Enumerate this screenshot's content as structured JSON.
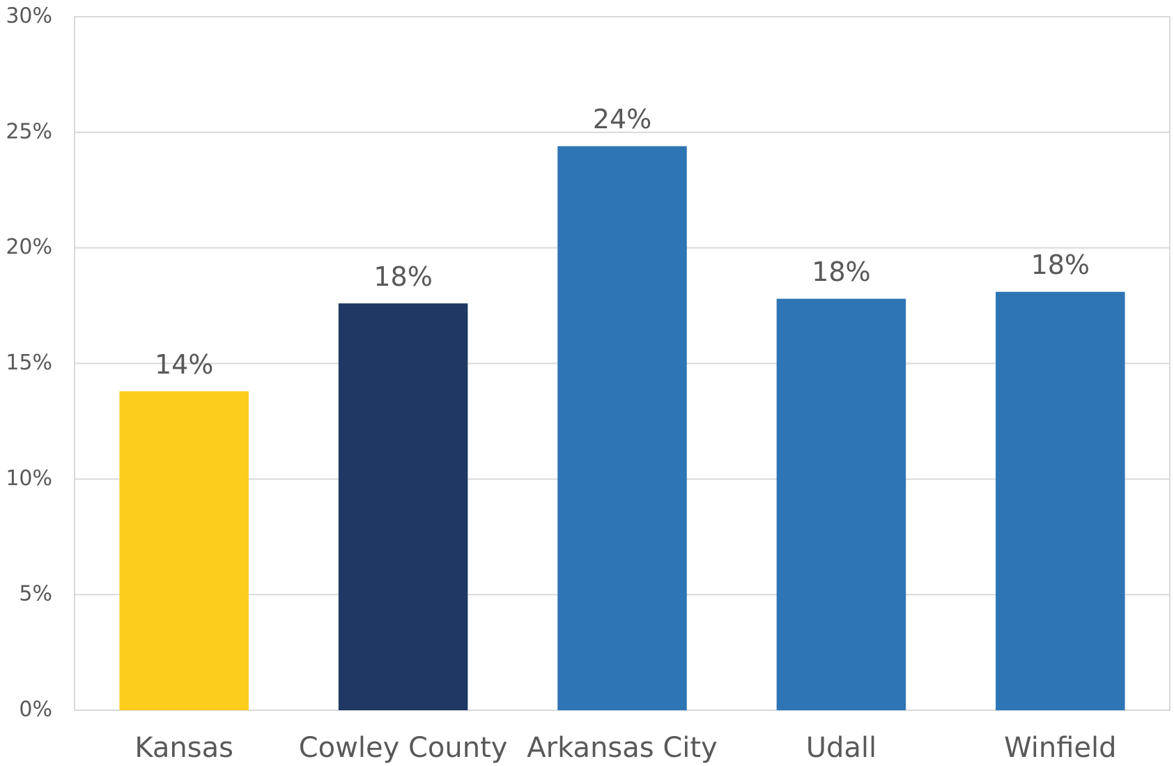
{
  "chart_data": {
    "type": "bar",
    "categories": [
      "Kansas",
      "Cowley County",
      "Arkansas City",
      "Udall",
      "Winfield"
    ],
    "values": [
      13.8,
      17.6,
      24.4,
      17.8,
      18.1
    ],
    "value_labels": [
      "14%",
      "18%",
      "24%",
      "18%",
      "18%"
    ],
    "colors": [
      "#fdcd1d",
      "#203864",
      "#2e75b6",
      "#2e75b6",
      "#2e75b6"
    ],
    "ylim": [
      0,
      30
    ],
    "yticks": [
      {
        "value": 0,
        "label": "0%"
      },
      {
        "value": 5,
        "label": "5%"
      },
      {
        "value": 10,
        "label": "10%"
      },
      {
        "value": 15,
        "label": "15%"
      },
      {
        "value": 20,
        "label": "20%"
      },
      {
        "value": 25,
        "label": "25%"
      },
      {
        "value": 30,
        "label": "30%"
      }
    ],
    "grid": true
  }
}
